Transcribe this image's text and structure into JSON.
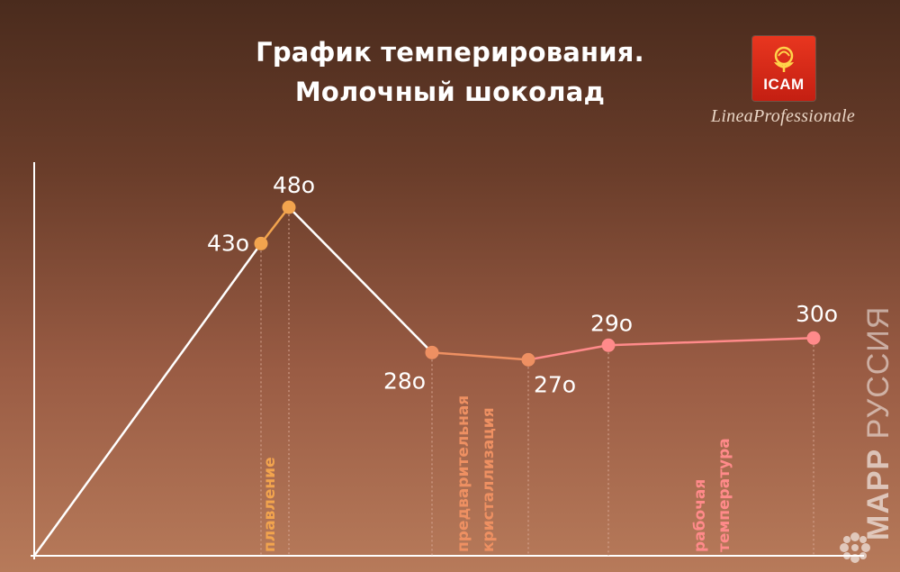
{
  "title": {
    "line1": "График темперирования.",
    "line2": "Молочный шоколад"
  },
  "brand": {
    "logo_text": "ICAM",
    "tagline": "LineaProfessionale"
  },
  "watermark": {
    "bold": "МАРР",
    "rest": " РУССИЯ"
  },
  "colors": {
    "white_line": "#ffffff",
    "melting": "#f2a44e",
    "precrystallization": "#ee9062",
    "working": "#ff8a8a",
    "dotted_guide": "#d9a996"
  },
  "chart_data": {
    "type": "line",
    "title": "График темперирования. Молочный шоколад",
    "xlabel": "",
    "ylabel": "",
    "grid": false,
    "points": [
      {
        "label": "43o",
        "y": 43,
        "phase": "melting"
      },
      {
        "label": "48o",
        "y": 48,
        "phase": "melting"
      },
      {
        "label": "28o",
        "y": 28,
        "phase": "precrystallization"
      },
      {
        "label": "27o",
        "y": 27,
        "phase": "precrystallization"
      },
      {
        "label": "29o",
        "y": 29,
        "phase": "working"
      },
      {
        "label": "30o",
        "y": 30,
        "phase": "working"
      }
    ],
    "phases": [
      {
        "key": "melting",
        "lines": [
          "плавление"
        ]
      },
      {
        "key": "precrystallization",
        "lines": [
          "предварительная",
          "кристаллизация"
        ]
      },
      {
        "key": "working",
        "lines": [
          "рабочая",
          "температура"
        ]
      }
    ]
  }
}
